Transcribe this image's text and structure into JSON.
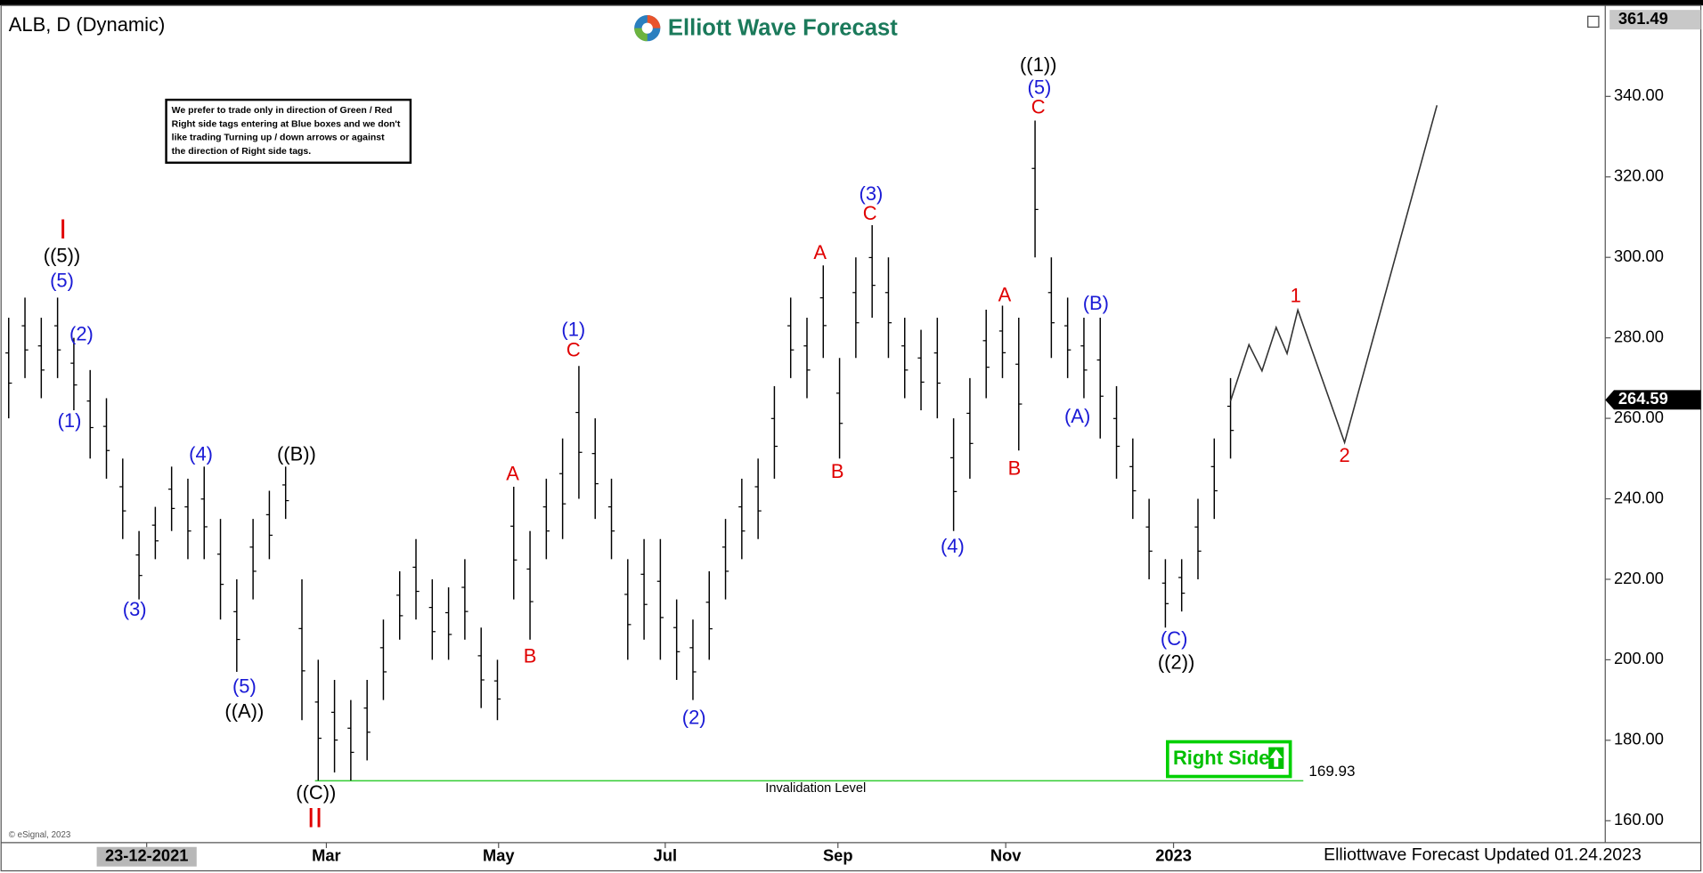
{
  "chart_data": {
    "type": "ohlc",
    "title": "ALB, D (Dynamic)",
    "brand": "Elliott Wave Forecast",
    "disclaimer": [
      "We prefer to trade only in direction of Green / Red",
      "Right side tags entering at Blue boxes and we don't",
      "like trading Turning up / down arrows or against",
      "the direction of Right side tags."
    ],
    "copyright": "© eSignal, 2023",
    "updated": "Elliottwave Forecast Updated 01.24.2023",
    "top_price": 361.49,
    "last_price": 264.59,
    "invalidation": {
      "value": 169.93,
      "label": "Invalidation Level"
    },
    "right_side": "Right Side",
    "xlim": [
      -0.2,
      98.0
    ],
    "ylim": [
      155.1,
      361.8
    ],
    "xticks": [
      {
        "value": 8.47,
        "label": "23-12-2021"
      },
      {
        "value": 19.5,
        "label": "Mar"
      },
      {
        "value": 30.07,
        "label": "May"
      },
      {
        "value": 40.3,
        "label": "Jul"
      },
      {
        "value": 50.9,
        "label": "Sep"
      },
      {
        "value": 61.2,
        "label": "Nov"
      },
      {
        "value": 71.5,
        "label": "2023"
      }
    ],
    "yticks": [
      {
        "value": 160,
        "label": "160.00"
      },
      {
        "value": 180,
        "label": "180.00"
      },
      {
        "value": 200,
        "label": "200.00"
      },
      {
        "value": 220,
        "label": "220.00"
      },
      {
        "value": 240,
        "label": "240.00"
      },
      {
        "value": 260,
        "label": "260.00"
      },
      {
        "value": 280,
        "label": "280.00"
      },
      {
        "value": 300,
        "label": "300.00"
      },
      {
        "value": 320,
        "label": "320.00"
      },
      {
        "value": 340,
        "label": "340.00"
      }
    ],
    "bars": {
      "color": "#000000",
      "high": [
        285,
        290,
        285,
        290,
        280,
        272,
        265,
        250,
        232,
        238,
        248,
        245,
        248,
        235,
        220,
        235,
        242,
        248,
        220,
        200,
        195,
        190,
        195,
        210,
        222,
        230,
        220,
        218,
        225,
        208,
        200,
        243,
        232,
        245,
        255,
        273,
        260,
        245,
        225,
        230,
        230,
        215,
        210,
        222,
        235,
        245,
        250,
        268,
        290,
        285,
        298,
        275,
        300,
        308,
        300,
        285,
        282,
        285,
        260,
        270,
        287,
        288,
        285,
        334,
        300,
        290,
        285,
        285,
        268,
        255,
        240,
        225,
        225,
        240,
        255,
        270
      ],
      "low": [
        260,
        270,
        265,
        270,
        262,
        250,
        245,
        230,
        215,
        225,
        232,
        225,
        225,
        210,
        197,
        215,
        225,
        235,
        185,
        170,
        172,
        170,
        175,
        190,
        205,
        210,
        200,
        200,
        205,
        188,
        185,
        215,
        205,
        225,
        230,
        240,
        235,
        225,
        200,
        205,
        200,
        195,
        190,
        200,
        215,
        225,
        230,
        245,
        270,
        265,
        275,
        250,
        275,
        285,
        275,
        265,
        262,
        260,
        232,
        245,
        265,
        270,
        252,
        300,
        275,
        270,
        265,
        255,
        245,
        235,
        220,
        208,
        212,
        220,
        235,
        250
      ]
    },
    "projection": {
      "color": "#333333",
      "x": [
        75,
        76.13,
        76.93,
        77.8,
        78.47,
        79.13,
        82,
        87.67
      ],
      "values": [
        264.3,
        278.3,
        271.8,
        282.6,
        276.1,
        286.9,
        254.0,
        337.8
      ]
    },
    "wave_labels": [
      {
        "text": "I",
        "color": "#e00000"
      },
      {
        "text": "((5))",
        "color": "#000000"
      },
      {
        "text": "(5)",
        "color": "#1a1ad6"
      },
      {
        "text": "(2)",
        "color": "#1a1ad6"
      },
      {
        "text": "(1)",
        "color": "#1a1ad6"
      },
      {
        "text": "(3)",
        "color": "#1a1ad6"
      },
      {
        "text": "(4)",
        "color": "#1a1ad6"
      },
      {
        "text": "((B))",
        "color": "#000000"
      },
      {
        "text": "(5)",
        "color": "#1a1ad6"
      },
      {
        "text": "((A))",
        "color": "#000000"
      },
      {
        "text": "((C))",
        "color": "#000000"
      },
      {
        "text": "II",
        "color": "#e00000"
      },
      {
        "text": "A",
        "color": "#e00000"
      },
      {
        "text": "B",
        "color": "#e00000"
      },
      {
        "text": "(1)",
        "color": "#1a1ad6"
      },
      {
        "text": "C",
        "color": "#e00000"
      },
      {
        "text": "(2)",
        "color": "#1a1ad6"
      },
      {
        "text": "A",
        "color": "#e00000"
      },
      {
        "text": "B",
        "color": "#e00000"
      },
      {
        "text": "(3)",
        "color": "#1a1ad6"
      },
      {
        "text": "C",
        "color": "#e00000"
      },
      {
        "text": "(4)",
        "color": "#1a1ad6"
      },
      {
        "text": "A",
        "color": "#e00000"
      },
      {
        "text": "B",
        "color": "#e00000"
      },
      {
        "text": "((1))",
        "color": "#000000"
      },
      {
        "text": "(5)",
        "color": "#1a1ad6"
      },
      {
        "text": "C",
        "color": "#e00000"
      },
      {
        "text": "(A)",
        "color": "#1a1ad6"
      },
      {
        "text": "(B)",
        "color": "#1a1ad6"
      },
      {
        "text": "(C)",
        "color": "#1a1ad6"
      },
      {
        "text": "((2))",
        "color": "#000000"
      },
      {
        "text": "1",
        "color": "#e00000"
      },
      {
        "text": "2",
        "color": "#e00000"
      }
    ]
  }
}
